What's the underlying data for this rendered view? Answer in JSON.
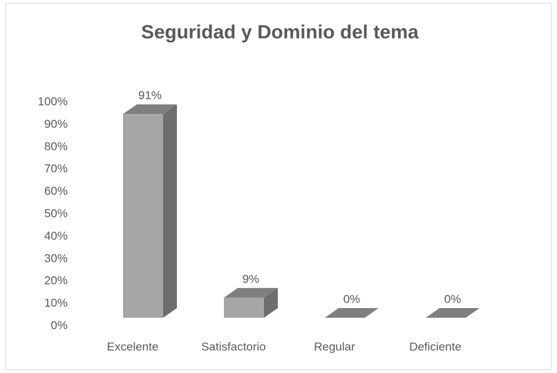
{
  "chart_data": {
    "type": "bar3d",
    "title": "Seguridad y Dominio del tema",
    "categories": [
      "Excelente",
      "Satisfactorio",
      "Regular",
      "Deficiente"
    ],
    "values": [
      91,
      9,
      0,
      0
    ],
    "value_labels": [
      "91%",
      "9%",
      "0%",
      "0%"
    ],
    "color": "#a6a6a6",
    "ylim": [
      0,
      100
    ],
    "yticks": [
      {
        "value": 0,
        "label": "0%"
      },
      {
        "value": 10,
        "label": "10%"
      },
      {
        "value": 20,
        "label": "20%"
      },
      {
        "value": 30,
        "label": "30%"
      },
      {
        "value": 40,
        "label": "40%"
      },
      {
        "value": 50,
        "label": "50%"
      },
      {
        "value": 60,
        "label": "60%"
      },
      {
        "value": 70,
        "label": "70%"
      },
      {
        "value": 80,
        "label": "80%"
      },
      {
        "value": 90,
        "label": "90%"
      },
      {
        "value": 100,
        "label": "100%"
      }
    ],
    "grid": false
  }
}
